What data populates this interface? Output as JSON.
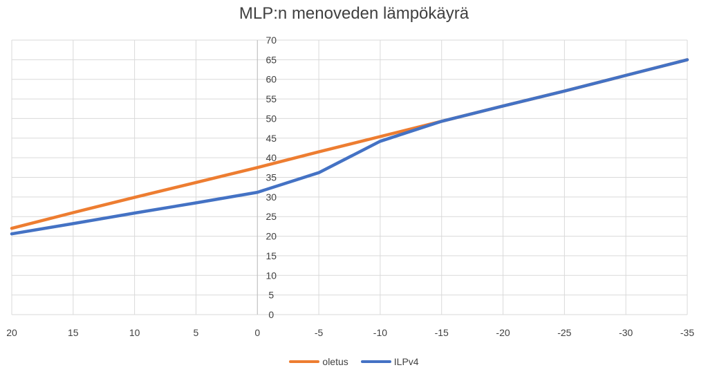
{
  "chart_data": {
    "type": "line",
    "title": "MLP:n menoveden lämpökäyrä",
    "x": [
      20,
      15,
      10,
      5,
      0,
      -5,
      -10,
      -15,
      -20,
      -25,
      -30,
      -35
    ],
    "x_ticks": [
      "20",
      "15",
      "10",
      "5",
      "0",
      "-5",
      "-10",
      "-15",
      "-20",
      "-25",
      "-30",
      "-35"
    ],
    "xlim": [
      20,
      -35
    ],
    "y_ticks": [
      "0",
      "5",
      "10",
      "15",
      "20",
      "25",
      "30",
      "35",
      "40",
      "45",
      "50",
      "55",
      "60",
      "65",
      "70"
    ],
    "ylim": [
      0,
      70
    ],
    "grid": true,
    "legend_position": "bottom",
    "series": [
      {
        "name": "oletus",
        "color": "#ED7D31",
        "values": [
          22,
          26,
          29.9,
          33.7,
          37.5,
          41.5,
          45.4,
          49.3,
          53.2,
          57,
          61,
          65
        ]
      },
      {
        "name": "ILPv4",
        "color": "#4472C4",
        "values": [
          20.6,
          23.2,
          25.9,
          28.5,
          31.2,
          36.2,
          44.2,
          49.3,
          53.2,
          57,
          61,
          65
        ]
      }
    ]
  }
}
